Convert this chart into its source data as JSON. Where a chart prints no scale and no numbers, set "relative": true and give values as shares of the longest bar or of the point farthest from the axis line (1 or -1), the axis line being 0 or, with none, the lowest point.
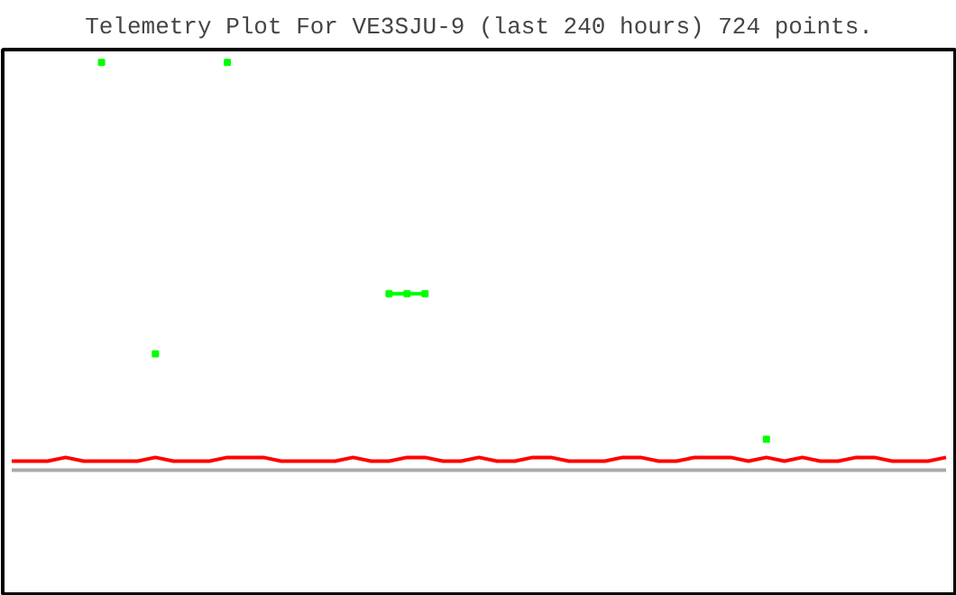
{
  "chart_data": {
    "type": "line",
    "title": "Telemetry Plot For VE3SJU-9 (last 240 hours) 724 points.",
    "relative": true,
    "tick_labels": false,
    "grid": false,
    "categories": [
      null,
      null,
      null,
      null,
      null,
      null,
      null,
      null,
      null,
      null,
      null,
      null,
      null,
      null,
      null,
      null,
      null,
      null,
      null,
      null,
      null,
      null,
      null,
      null,
      null,
      null,
      null,
      null,
      null,
      null,
      null,
      null,
      null,
      null,
      null,
      null,
      null,
      null,
      null,
      null,
      null,
      null,
      null,
      null,
      null,
      null,
      null,
      null,
      null,
      null,
      null,
      null,
      null
    ],
    "series": [
      {
        "color": "#aaaaaa",
        "values": [
          0.233,
          0.233,
          0.233,
          0.233,
          0.233,
          0.233,
          0.233,
          0.233,
          0.233,
          0.233,
          0.233,
          0.233,
          0.233,
          0.233,
          0.233,
          0.233,
          0.233,
          0.233,
          0.233,
          0.233,
          0.233,
          0.233,
          0.233,
          0.233,
          0.233,
          0.233,
          0.233,
          0.233,
          0.233,
          0.233,
          0.233,
          0.233,
          0.233,
          0.233,
          0.233,
          0.233,
          0.233,
          0.233,
          0.233,
          0.233,
          0.233,
          0.233,
          0.233,
          0.233,
          0.233,
          0.233,
          0.233,
          0.233,
          0.233,
          0.233,
          0.233,
          0.233,
          0.233
        ]
      },
      {
        "color": "#ff0000",
        "values": [
          0.25,
          0.25,
          0.25,
          0.257,
          0.25,
          0.25,
          0.25,
          0.25,
          0.257,
          0.25,
          0.25,
          0.25,
          0.257,
          0.257,
          0.257,
          0.25,
          0.25,
          0.25,
          0.25,
          0.257,
          0.25,
          0.25,
          0.257,
          0.257,
          0.25,
          0.25,
          0.257,
          0.25,
          0.25,
          0.257,
          0.257,
          0.25,
          0.25,
          0.25,
          0.257,
          0.257,
          0.25,
          0.25,
          0.257,
          0.257,
          0.257,
          0.25,
          0.257,
          0.25,
          0.257,
          0.25,
          0.25,
          0.257,
          0.257,
          0.25,
          0.25,
          0.25,
          0.257
        ]
      },
      {
        "marker": "square",
        "color": "#00ff00",
        "values": [
          null,
          null,
          null,
          null,
          null,
          1.0,
          null,
          null,
          0.452,
          null,
          null,
          null,
          1.0,
          null,
          null,
          null,
          null,
          null,
          null,
          null,
          null,
          0.565,
          0.565,
          0.565,
          null,
          null,
          null,
          null,
          null,
          null,
          null,
          null,
          null,
          null,
          null,
          null,
          null,
          null,
          null,
          null,
          null,
          null,
          0.291,
          null,
          null,
          null,
          null,
          null,
          null,
          null,
          null,
          null,
          null
        ]
      }
    ]
  }
}
